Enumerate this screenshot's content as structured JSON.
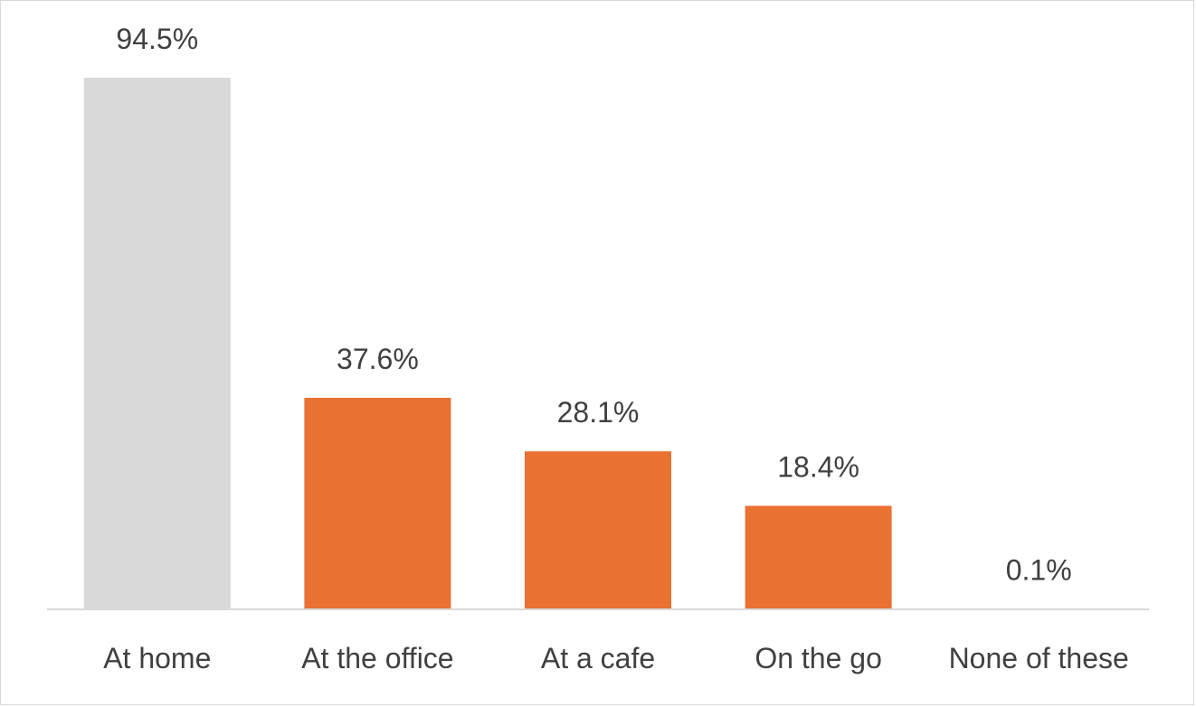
{
  "chart_data": {
    "type": "bar",
    "categories": [
      "At home",
      "At the office",
      "At a cafe",
      "On the go",
      "None of these"
    ],
    "values": [
      94.5,
      37.6,
      28.1,
      18.4,
      0.1
    ],
    "data_labels": [
      "94.5%",
      "37.6%",
      "28.1%",
      "18.4%",
      "0.1%"
    ],
    "unit": "%",
    "ylim": [
      0,
      100
    ],
    "grid": false,
    "legend": "none",
    "bar_colors": [
      "#d9d9d9",
      "#e97132",
      "#e97132",
      "#e97132",
      "#e97132"
    ],
    "axis_color": "#d9d9d9",
    "text_color": "#404040"
  }
}
